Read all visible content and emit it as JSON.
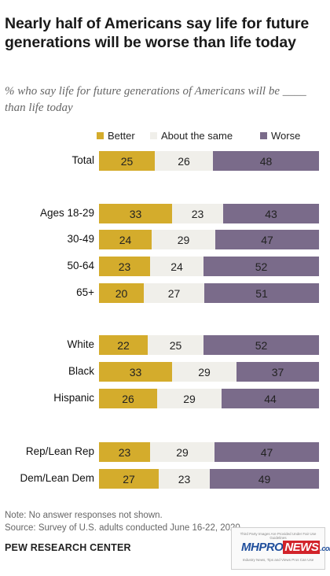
{
  "title": "Nearly half of Americans say life for future generations will be worse than life today",
  "subtitle": "% who say life for future generations of Americans will be ____ than life today",
  "colors": {
    "better": "#d4ac2c",
    "same": "#f0efea",
    "worse": "#7a6b8a"
  },
  "chart_data": {
    "type": "bar",
    "orientation": "horizontal",
    "stacked": true,
    "categories": [
      "Total",
      "Ages 18-29",
      "30-49",
      "50-64",
      "65+",
      "White",
      "Black",
      "Hispanic",
      "Rep/Lean Rep",
      "Dem/Lean Dem"
    ],
    "series": [
      {
        "name": "Better",
        "values": [
          25,
          33,
          24,
          23,
          20,
          22,
          33,
          26,
          23,
          27
        ]
      },
      {
        "name": "About the same",
        "values": [
          26,
          23,
          29,
          24,
          27,
          25,
          29,
          29,
          29,
          23
        ]
      },
      {
        "name": "Worse",
        "values": [
          48,
          43,
          47,
          52,
          51,
          52,
          37,
          44,
          47,
          49
        ]
      }
    ],
    "legend_placement": "top",
    "grid": false
  },
  "notes": {
    "note": "Note: No answer responses not shown.",
    "source": "Source: Survey of U.S. adults conducted June 16-22, 2020."
  },
  "footer": "PEW RESEARCH CENTER",
  "logo": {
    "top_text": "Third Party Images Are Provided Under Fair Use Guidelines",
    "brand_mh": "MH",
    "brand_pro": "PRO",
    "brand_news": "NEWS",
    "brand_com": ".com",
    "tagline": "Industry News, Tips and Views Pros Can Use"
  }
}
